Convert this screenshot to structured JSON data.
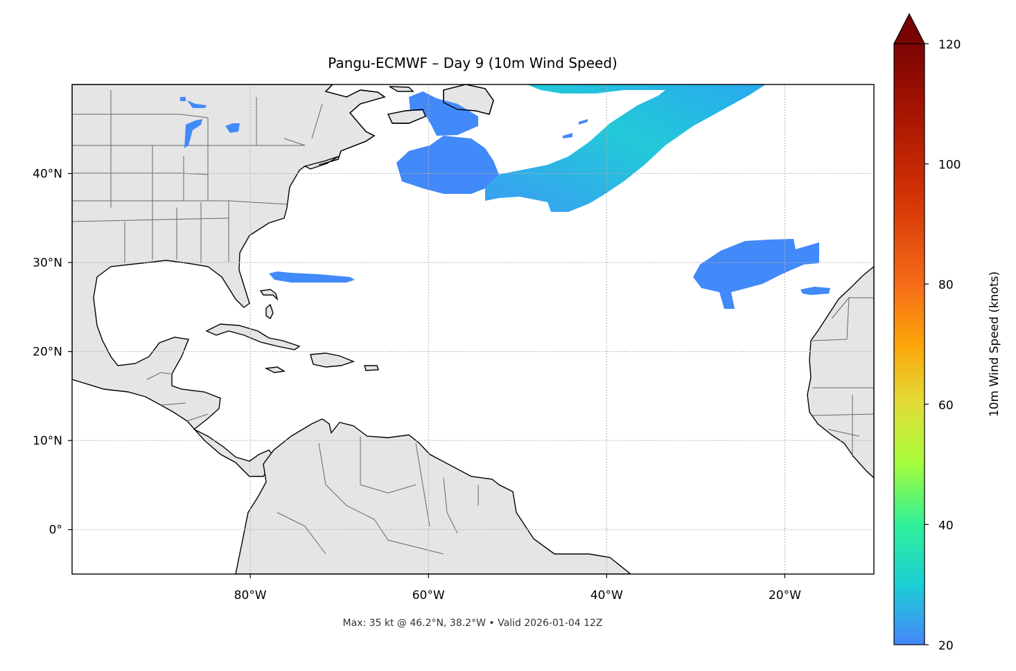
{
  "title": "Pangu-ECMWF – Day 9 (10m Wind Speed)",
  "footer": "Max: 35 kt @ 46.2°N, 38.2°W • Valid 2026-01-04 12Z",
  "map": {
    "lon_range": [
      -100,
      -10
    ],
    "lat_range": [
      -5,
      50
    ],
    "lon_ticks": [
      {
        "value": -80,
        "label": "80°W"
      },
      {
        "value": -60,
        "label": "60°W"
      },
      {
        "value": -40,
        "label": "40°W"
      },
      {
        "value": -20,
        "label": "20°W"
      }
    ],
    "lat_ticks": [
      {
        "value": 40,
        "label": "40°N"
      },
      {
        "value": 30,
        "label": "30°N"
      },
      {
        "value": 20,
        "label": "20°N"
      },
      {
        "value": 10,
        "label": "10°N"
      },
      {
        "value": 0,
        "label": "0°"
      }
    ],
    "gridlines": true,
    "land_color": "#e5e5e5",
    "ocean_color": "#ffffff"
  },
  "colorbar": {
    "label": "10m Wind Speed (knots)",
    "min": 20,
    "max": 120,
    "extend": "max",
    "extend_color": "#7a0403",
    "ticks": [
      {
        "value": 20,
        "label": "20"
      },
      {
        "value": 40,
        "label": "40"
      },
      {
        "value": 60,
        "label": "60"
      },
      {
        "value": 80,
        "label": "80"
      },
      {
        "value": 100,
        "label": "100"
      },
      {
        "value": 120,
        "label": "120"
      }
    ],
    "colormap": [
      "#4686fb",
      "#1bcfd4",
      "#2ff09a",
      "#a4fc3c",
      "#e1dd37",
      "#fca50a",
      "#f66c19",
      "#d23105",
      "#a11201",
      "#7a0403"
    ]
  },
  "wind_areas": [
    {
      "name": "north-atlantic-jet",
      "speed_kt": 35
    },
    {
      "name": "gulf-of-st-lawrence",
      "speed_kt": 22
    },
    {
      "name": "off-us-east-coast",
      "speed_kt": 24
    },
    {
      "name": "north-of-bahamas",
      "speed_kt": 22
    },
    {
      "name": "northeast-of-canaries",
      "speed_kt": 24
    },
    {
      "name": "great-lakes",
      "speed_kt": 21
    }
  ],
  "max_wind": {
    "speed_kt": 35,
    "lat": 46.2,
    "lon": -38.2
  }
}
